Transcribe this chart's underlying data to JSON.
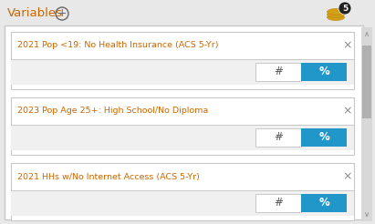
{
  "title": "Variables",
  "badge_number": "5",
  "outer_bg": "#e8e8e8",
  "panel_bg": "#ffffff",
  "panel_border": "#c8c8c8",
  "card_bg": "#f5f5f5",
  "card_bg2": "#ffffff",
  "card_border": "#c8c8c8",
  "title_color": "#cc6600",
  "x_color": "#888888",
  "hash_color": "#555555",
  "percent_color": "#ffffff",
  "percent_bg": "#2196c8",
  "hash_bg": "#ffffff",
  "button_border": "#c8c8c8",
  "scrollbar_track": "#d8d8d8",
  "scrollbar_thumb": "#b0b0b0",
  "arrow_color": "#888888",
  "icon_gold1": "#d4a017",
  "icon_gold2": "#c8961a",
  "icon_gold3": "#b88010",
  "icon_dark": "#222222",
  "items": [
    "2021 Pop <19: No Health Insurance (ACS 5-Yr)",
    "2023 Pop Age 25+: High School/No Diploma",
    "2021 HHs w/No Internet Access (ACS 5-Yr)"
  ]
}
